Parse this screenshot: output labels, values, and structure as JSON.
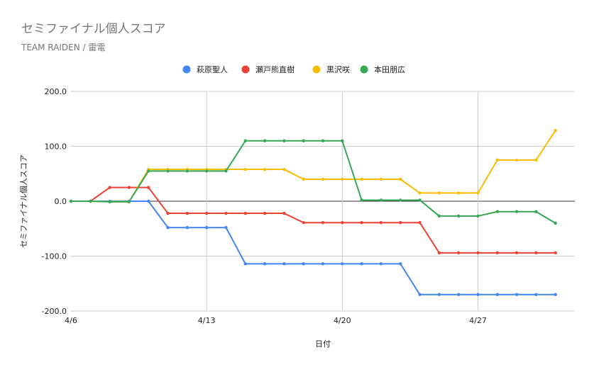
{
  "chart_data": {
    "type": "line",
    "title": "セミファイナル個人スコア",
    "subtitle": "TEAM RAIDEN / 雷電",
    "xlabel": "日付",
    "ylabel": "セミファイナル個人スコア",
    "ylim": [
      -200,
      200
    ],
    "yticks": [
      "200.0",
      "100.0",
      "0.0",
      "-100.0",
      "-200.0"
    ],
    "ytick_values": [
      200,
      100,
      0,
      -100,
      -200
    ],
    "xlim_days": [
      0,
      26
    ],
    "xticks": [
      {
        "label": "4/6",
        "day": 0
      },
      {
        "label": "4/13",
        "day": 7
      },
      {
        "label": "4/20",
        "day": 14
      },
      {
        "label": "4/27",
        "day": 21
      }
    ],
    "legend_position": "top",
    "grid": true,
    "series": [
      {
        "name": "萩原聖人",
        "color": "#4285F4",
        "values": [
          [
            0,
            0
          ],
          [
            1,
            0
          ],
          [
            2,
            0
          ],
          [
            3,
            0
          ],
          [
            4,
            0
          ],
          [
            5,
            -48
          ],
          [
            6,
            -48
          ],
          [
            7,
            -48
          ],
          [
            8,
            -48
          ],
          [
            9,
            -114
          ],
          [
            10,
            -114
          ],
          [
            11,
            -114
          ],
          [
            12,
            -114
          ],
          [
            13,
            -114
          ],
          [
            14,
            -114
          ],
          [
            15,
            -114
          ],
          [
            16,
            -114
          ],
          [
            17,
            -114
          ],
          [
            18,
            -170
          ],
          [
            19,
            -170
          ],
          [
            20,
            -170
          ],
          [
            21,
            -170
          ],
          [
            22,
            -170
          ],
          [
            23,
            -170
          ],
          [
            24,
            -170
          ],
          [
            25,
            -170
          ]
        ]
      },
      {
        "name": "瀬戸熊直樹",
        "color": "#EA4335",
        "values": [
          [
            0,
            0
          ],
          [
            1,
            0
          ],
          [
            2,
            25
          ],
          [
            3,
            25
          ],
          [
            4,
            25
          ],
          [
            5,
            -22
          ],
          [
            6,
            -22
          ],
          [
            7,
            -22
          ],
          [
            8,
            -22
          ],
          [
            9,
            -22
          ],
          [
            10,
            -22
          ],
          [
            11,
            -22
          ],
          [
            12,
            -39
          ],
          [
            13,
            -39
          ],
          [
            14,
            -39
          ],
          [
            15,
            -39
          ],
          [
            16,
            -39
          ],
          [
            17,
            -39
          ],
          [
            18,
            -39
          ],
          [
            19,
            -94
          ],
          [
            20,
            -94
          ],
          [
            21,
            -94
          ],
          [
            22,
            -94
          ],
          [
            23,
            -94
          ],
          [
            24,
            -94
          ],
          [
            25,
            -94
          ]
        ]
      },
      {
        "name": "黒沢咲",
        "color": "#FBBC04",
        "values": [
          [
            0,
            0
          ],
          [
            1,
            0
          ],
          [
            2,
            -1
          ],
          [
            3,
            -1
          ],
          [
            4,
            58
          ],
          [
            5,
            58
          ],
          [
            6,
            58
          ],
          [
            7,
            58
          ],
          [
            8,
            58
          ],
          [
            9,
            58
          ],
          [
            10,
            58
          ],
          [
            11,
            58
          ],
          [
            12,
            40
          ],
          [
            13,
            40
          ],
          [
            14,
            40
          ],
          [
            15,
            40
          ],
          [
            16,
            40
          ],
          [
            17,
            40
          ],
          [
            18,
            15
          ],
          [
            19,
            15
          ],
          [
            20,
            15
          ],
          [
            21,
            15
          ],
          [
            22,
            75
          ],
          [
            23,
            75
          ],
          [
            24,
            75
          ],
          [
            25,
            129
          ]
        ]
      },
      {
        "name": "本田朋広",
        "color": "#34A853",
        "values": [
          [
            0,
            0
          ],
          [
            1,
            0
          ],
          [
            2,
            -1
          ],
          [
            3,
            -1
          ],
          [
            4,
            55
          ],
          [
            5,
            55
          ],
          [
            6,
            55
          ],
          [
            7,
            55
          ],
          [
            8,
            55
          ],
          [
            9,
            110
          ],
          [
            10,
            110
          ],
          [
            11,
            110
          ],
          [
            12,
            110
          ],
          [
            13,
            110
          ],
          [
            14,
            110
          ],
          [
            15,
            2
          ],
          [
            16,
            2
          ],
          [
            17,
            2
          ],
          [
            18,
            2
          ],
          [
            19,
            -27
          ],
          [
            20,
            -27
          ],
          [
            21,
            -27
          ],
          [
            22,
            -19
          ],
          [
            23,
            -19
          ],
          [
            24,
            -19
          ],
          [
            25,
            -40
          ]
        ]
      }
    ]
  }
}
